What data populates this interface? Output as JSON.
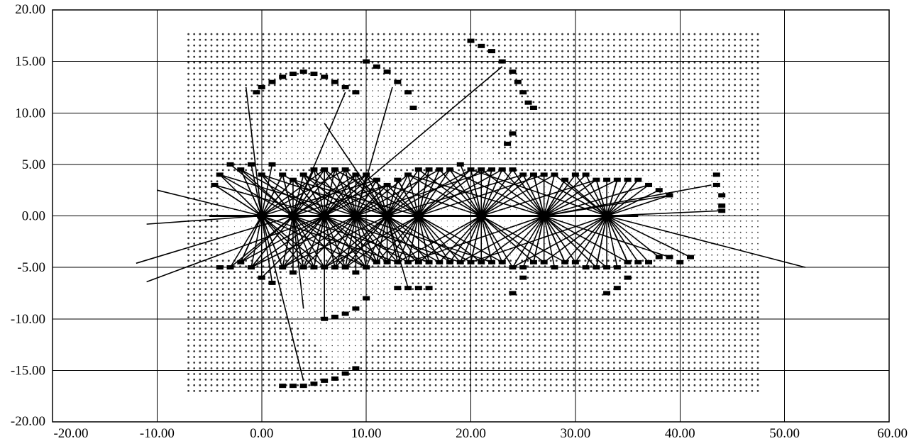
{
  "chart_data": {
    "type": "scatter",
    "title": "",
    "xlabel": "",
    "ylabel": "",
    "xlim": [
      -20,
      60
    ],
    "ylim": [
      -20,
      20
    ],
    "grid": true,
    "legend": "none",
    "x_ticks": [
      "-20.00",
      "-10.00",
      "0.00",
      "10.00",
      "20.00",
      "30.00",
      "40.00",
      "50.00",
      "60.00"
    ],
    "y_ticks": [
      "20.00",
      "15.00",
      "10.00",
      "5.00",
      "0.00",
      "-5.00",
      "-10.00",
      "-15.00",
      "-20.00"
    ],
    "x_tick_values": [
      -20,
      -10,
      0,
      10,
      20,
      30,
      40,
      50,
      60
    ],
    "y_tick_values": [
      20,
      15,
      10,
      5,
      0,
      -5,
      -10,
      -15,
      -20
    ],
    "colors": {
      "ink": "#000000",
      "grid_fill": "#333333",
      "background": "#ffffff"
    },
    "occupancy_grid": {
      "x_range": [
        -7,
        47.5
      ],
      "y_range": [
        -17,
        18
      ],
      "step": 0.55
    },
    "scan_poses": [
      {
        "x": 0,
        "y": 0
      },
      {
        "x": 3,
        "y": 0
      },
      {
        "x": 6,
        "y": 0
      },
      {
        "x": 9,
        "y": 0
      },
      {
        "x": 12,
        "y": 0
      },
      {
        "x": 15,
        "y": 0
      },
      {
        "x": 21,
        "y": 0
      },
      {
        "x": 27,
        "y": 0
      },
      {
        "x": 33,
        "y": 0
      }
    ],
    "long_rays": [
      {
        "from": [
          0,
          0
        ],
        "to": [
          -10,
          2.5
        ]
      },
      {
        "from": [
          0,
          0
        ],
        "to": [
          -11,
          -0.8
        ]
      },
      {
        "from": [
          3,
          0
        ],
        "to": [
          -12,
          -4.6
        ]
      },
      {
        "from": [
          6,
          0
        ],
        "to": [
          -11,
          -6.4
        ]
      },
      {
        "from": [
          0,
          0
        ],
        "to": [
          -1.5,
          12.5
        ]
      },
      {
        "from": [
          3,
          0
        ],
        "to": [
          8,
          12
        ]
      },
      {
        "from": [
          9,
          0
        ],
        "to": [
          12.5,
          12.5
        ]
      },
      {
        "from": [
          6,
          0
        ],
        "to": [
          23,
          14.5
        ]
      },
      {
        "from": [
          12,
          0
        ],
        "to": [
          6,
          9
        ]
      },
      {
        "from": [
          0,
          0
        ],
        "to": [
          4,
          -16
        ]
      },
      {
        "from": [
          3,
          0
        ],
        "to": [
          4,
          -9
        ]
      },
      {
        "from": [
          6,
          0
        ],
        "to": [
          6,
          -10
        ]
      },
      {
        "from": [
          12,
          0
        ],
        "to": [
          14,
          -7
        ]
      },
      {
        "from": [
          33,
          0
        ],
        "to": [
          52,
          -5
        ]
      },
      {
        "from": [
          27,
          0
        ],
        "to": [
          43,
          3
        ]
      }
    ],
    "boundary_points": [
      [
        -4.5,
        3
      ],
      [
        -4,
        4
      ],
      [
        -3,
        5
      ],
      [
        -2,
        4.5
      ],
      [
        -1,
        5
      ],
      [
        0,
        4
      ],
      [
        1,
        5
      ],
      [
        2,
        4
      ],
      [
        3,
        3.5
      ],
      [
        4,
        4
      ],
      [
        5,
        4.5
      ],
      [
        6,
        4.5
      ],
      [
        7,
        4.5
      ],
      [
        8,
        4.5
      ],
      [
        9,
        4
      ],
      [
        10,
        4
      ],
      [
        11,
        3.5
      ],
      [
        12,
        3
      ],
      [
        13,
        3.5
      ],
      [
        14,
        4
      ],
      [
        15,
        4.5
      ],
      [
        16,
        4.5
      ],
      [
        17,
        4.5
      ],
      [
        18,
        4.5
      ],
      [
        19,
        5
      ],
      [
        20,
        4.5
      ],
      [
        21,
        4.5
      ],
      [
        22,
        4.5
      ],
      [
        23,
        4.5
      ],
      [
        24,
        4.5
      ],
      [
        25,
        4
      ],
      [
        26,
        4
      ],
      [
        27,
        4
      ],
      [
        28,
        4
      ],
      [
        29,
        3.5
      ],
      [
        30,
        4
      ],
      [
        31,
        4
      ],
      [
        32,
        3.5
      ],
      [
        33,
        3.5
      ],
      [
        34,
        3.5
      ],
      [
        35,
        3.5
      ],
      [
        36,
        3.5
      ],
      [
        37,
        3
      ],
      [
        38,
        2.5
      ],
      [
        39,
        2
      ],
      [
        -4,
        -5
      ],
      [
        -3,
        -5
      ],
      [
        -2,
        -4.5
      ],
      [
        -1,
        -5
      ],
      [
        0,
        -6
      ],
      [
        1,
        -6.5
      ],
      [
        2,
        -5
      ],
      [
        3,
        -5.5
      ],
      [
        4,
        -5
      ],
      [
        5,
        -5
      ],
      [
        6,
        -5
      ],
      [
        7,
        -5
      ],
      [
        8,
        -5
      ],
      [
        9,
        -5.5
      ],
      [
        10,
        -5
      ],
      [
        11,
        -4.5
      ],
      [
        12,
        -4.5
      ],
      [
        13,
        -4.5
      ],
      [
        14,
        -4.5
      ],
      [
        15,
        -4.5
      ],
      [
        16,
        -4.5
      ],
      [
        17,
        -4.5
      ],
      [
        18,
        -4.5
      ],
      [
        19,
        -4.5
      ],
      [
        20,
        -4.5
      ],
      [
        21,
        -4.5
      ],
      [
        22,
        -4.5
      ],
      [
        23,
        -4.5
      ],
      [
        24,
        -5
      ],
      [
        25,
        -5
      ],
      [
        26,
        -4.5
      ],
      [
        27,
        -4.5
      ],
      [
        28,
        -5
      ],
      [
        29,
        -4.5
      ],
      [
        30,
        -4.5
      ],
      [
        31,
        -5
      ],
      [
        32,
        -5
      ],
      [
        33,
        -5
      ],
      [
        34,
        -5
      ],
      [
        35,
        -4.5
      ],
      [
        36,
        -4.5
      ],
      [
        37,
        -4.5
      ],
      [
        38,
        -4
      ],
      [
        39,
        -4
      ],
      [
        -0.5,
        12
      ],
      [
        0,
        12.5
      ],
      [
        1,
        13
      ],
      [
        2,
        13.5
      ],
      [
        3,
        13.8
      ],
      [
        4,
        14
      ],
      [
        5,
        13.8
      ],
      [
        6,
        13.5
      ],
      [
        7,
        13
      ],
      [
        8,
        12.5
      ],
      [
        9,
        12
      ],
      [
        10,
        15
      ],
      [
        11,
        14.5
      ],
      [
        12,
        14
      ],
      [
        13,
        13
      ],
      [
        14,
        12
      ],
      [
        14.5,
        10.5
      ],
      [
        20,
        17
      ],
      [
        21,
        16.5
      ],
      [
        22,
        16
      ],
      [
        23,
        15
      ],
      [
        24,
        14
      ],
      [
        24.5,
        13
      ],
      [
        25,
        12
      ],
      [
        25.5,
        11
      ],
      [
        26,
        10.5
      ],
      [
        4,
        -16.5
      ],
      [
        3,
        -16.5
      ],
      [
        2,
        -16.5
      ],
      [
        5,
        -16.3
      ],
      [
        6,
        -16
      ],
      [
        7,
        -15.8
      ],
      [
        8,
        -15.3
      ],
      [
        9,
        -14.8
      ],
      [
        6,
        -10
      ],
      [
        7,
        -9.8
      ],
      [
        8,
        -9.5
      ],
      [
        9,
        -9
      ],
      [
        10,
        -8
      ],
      [
        13,
        -7
      ],
      [
        14,
        -7
      ],
      [
        15,
        -7
      ],
      [
        16,
        -7
      ],
      [
        24,
        -7.5
      ],
      [
        25,
        -6
      ],
      [
        33,
        -7.5
      ],
      [
        34,
        -7
      ],
      [
        35,
        -6
      ],
      [
        43.5,
        4
      ],
      [
        43.5,
        3
      ],
      [
        44,
        2
      ],
      [
        44,
        1
      ],
      [
        44,
        0.5
      ],
      [
        41,
        -4
      ],
      [
        40,
        -4.5
      ],
      [
        23.5,
        7
      ],
      [
        24,
        8
      ]
    ]
  }
}
